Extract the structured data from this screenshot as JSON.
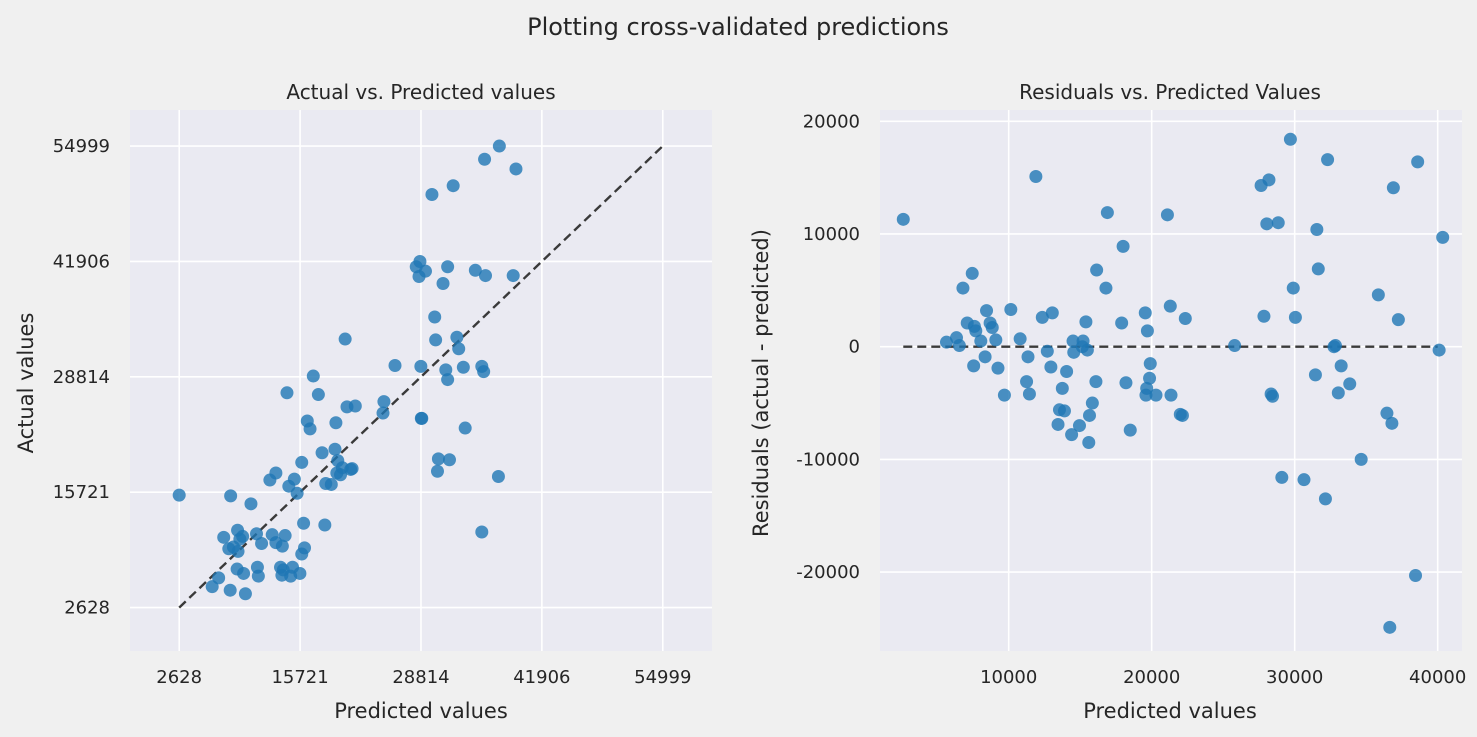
{
  "figure": {
    "suptitle": "Plotting cross-validated predictions",
    "background": "#f0f0f0",
    "axes_face": "#eaeaf2",
    "grid_color": "#ffffff",
    "point_color": "#1f77b4",
    "line_color": "#3a3a3a"
  },
  "chart_data": [
    {
      "type": "scatter",
      "title": "Actual vs. Predicted values",
      "xlabel": "Predicted values",
      "ylabel": "Actual values",
      "xlim": [
        -2700,
        60330
      ],
      "ylim": [
        -2300,
        59090
      ],
      "xticks": [
        2628,
        15721,
        28814,
        41906,
        54999
      ],
      "yticks": [
        2628,
        15721,
        28814,
        41906,
        54999
      ],
      "grid": true,
      "reference_line": {
        "style": "dashed",
        "x": [
          2628,
          54999
        ],
        "y": [
          2628,
          54999
        ]
      },
      "points": [
        [
          2628,
          15390
        ],
        [
          6200,
          5000
        ],
        [
          6900,
          6000
        ],
        [
          7450,
          10600
        ],
        [
          8000,
          9300
        ],
        [
          8150,
          4600
        ],
        [
          8200,
          15300
        ],
        [
          8500,
          9500
        ],
        [
          8900,
          7000
        ],
        [
          8950,
          11400
        ],
        [
          9000,
          9000
        ],
        [
          9200,
          10400
        ],
        [
          9500,
          10700
        ],
        [
          9600,
          6500
        ],
        [
          9800,
          4200
        ],
        [
          10400,
          14400
        ],
        [
          11000,
          11000
        ],
        [
          11100,
          7200
        ],
        [
          11200,
          6200
        ],
        [
          11550,
          9900
        ],
        [
          12450,
          17100
        ],
        [
          12700,
          10900
        ],
        [
          13100,
          17900
        ],
        [
          13100,
          10000
        ],
        [
          13600,
          7200
        ],
        [
          13750,
          6300
        ],
        [
          13800,
          9600
        ],
        [
          13900,
          6900
        ],
        [
          14100,
          10800
        ],
        [
          14500,
          16400
        ],
        [
          14700,
          6200
        ],
        [
          14900,
          7200
        ],
        [
          15100,
          17200
        ],
        [
          15400,
          15600
        ],
        [
          15700,
          6500
        ],
        [
          15900,
          8700
        ],
        [
          15900,
          19100
        ],
        [
          16100,
          12200
        ],
        [
          16200,
          9400
        ],
        [
          16500,
          23800
        ],
        [
          16800,
          22900
        ],
        [
          17150,
          28900
        ],
        [
          17700,
          26800
        ],
        [
          18100,
          20200
        ],
        [
          18400,
          12000
        ],
        [
          18500,
          16700
        ],
        [
          19100,
          16600
        ],
        [
          19500,
          20600
        ],
        [
          19600,
          23600
        ],
        [
          19700,
          17900
        ],
        [
          19800,
          19300
        ],
        [
          20100,
          17700
        ],
        [
          20300,
          18500
        ],
        [
          20600,
          33100
        ],
        [
          20800,
          25400
        ],
        [
          21200,
          18300
        ],
        [
          21350,
          18400
        ],
        [
          21700,
          25500
        ],
        [
          14300,
          27000
        ],
        [
          24800,
          26000
        ],
        [
          24700,
          24700
        ],
        [
          26000,
          30100
        ],
        [
          28300,
          41300
        ],
        [
          28600,
          40200
        ],
        [
          28800,
          30000
        ],
        [
          28700,
          41900
        ],
        [
          28850,
          24100
        ],
        [
          28900,
          24100
        ],
        [
          29300,
          40800
        ],
        [
          30000,
          49500
        ],
        [
          30300,
          35600
        ],
        [
          30400,
          33000
        ],
        [
          30600,
          18100
        ],
        [
          30700,
          19500
        ],
        [
          31200,
          39400
        ],
        [
          31500,
          29600
        ],
        [
          31700,
          28500
        ],
        [
          31700,
          41300
        ],
        [
          31900,
          19400
        ],
        [
          32300,
          50500
        ],
        [
          32700,
          33300
        ],
        [
          32900,
          32000
        ],
        [
          33400,
          29900
        ],
        [
          33600,
          23000
        ],
        [
          34700,
          40900
        ],
        [
          35400,
          30000
        ],
        [
          35400,
          11200
        ],
        [
          35600,
          29400
        ],
        [
          35700,
          53500
        ],
        [
          35800,
          40300
        ],
        [
          37200,
          17500
        ],
        [
          37300,
          54999
        ],
        [
          38800,
          40300
        ],
        [
          39100,
          52400
        ]
      ]
    },
    {
      "type": "scatter",
      "title": "Residuals vs. Predicted Values",
      "xlabel": "Predicted values",
      "ylabel": "Residuals (actual - predicted)",
      "xlim": [
        1000,
        41700
      ],
      "ylim": [
        -27000,
        21000
      ],
      "xticks": [
        10000,
        20000,
        30000,
        40000
      ],
      "yticks": [
        -20000,
        -10000,
        0,
        10000,
        20000
      ],
      "grid": true,
      "reference_line": {
        "style": "dashed",
        "x": [
          2628,
          40000
        ],
        "y": [
          0,
          0
        ]
      },
      "points": [
        [
          2628,
          11300
        ],
        [
          5650,
          400
        ],
        [
          6350,
          800
        ],
        [
          6550,
          100
        ],
        [
          6800,
          5200
        ],
        [
          7100,
          2100
        ],
        [
          7450,
          6500
        ],
        [
          7550,
          -1700
        ],
        [
          7600,
          1800
        ],
        [
          7700,
          1400
        ],
        [
          8050,
          500
        ],
        [
          8350,
          -900
        ],
        [
          8450,
          3200
        ],
        [
          8700,
          2100
        ],
        [
          8850,
          1700
        ],
        [
          9100,
          600
        ],
        [
          9250,
          -1900
        ],
        [
          9700,
          -4300
        ],
        [
          10150,
          3300
        ],
        [
          10800,
          700
        ],
        [
          11250,
          -3100
        ],
        [
          11350,
          -900
        ],
        [
          11450,
          -4200
        ],
        [
          11900,
          15100
        ],
        [
          12350,
          2600
        ],
        [
          12700,
          -400
        ],
        [
          12950,
          -1800
        ],
        [
          13050,
          3000
        ],
        [
          13450,
          -6900
        ],
        [
          13550,
          -5600
        ],
        [
          13750,
          -3700
        ],
        [
          13900,
          -5700
        ],
        [
          14050,
          -2200
        ],
        [
          14400,
          -7800
        ],
        [
          14500,
          500
        ],
        [
          14550,
          -500
        ],
        [
          14950,
          -7000
        ],
        [
          15150,
          0
        ],
        [
          15200,
          500
        ],
        [
          15400,
          2200
        ],
        [
          15500,
          -300
        ],
        [
          15600,
          -8500
        ],
        [
          15650,
          -6100
        ],
        [
          15850,
          -5000
        ],
        [
          16150,
          6800
        ],
        [
          16100,
          -3100
        ],
        [
          16800,
          5200
        ],
        [
          16900,
          11900
        ],
        [
          17900,
          2100
        ],
        [
          18000,
          8900
        ],
        [
          18200,
          -3200
        ],
        [
          18500,
          -7400
        ],
        [
          19550,
          3000
        ],
        [
          19600,
          -4300
        ],
        [
          19650,
          -3700
        ],
        [
          19700,
          1400
        ],
        [
          19850,
          -2800
        ],
        [
          19900,
          -1500
        ],
        [
          20300,
          -4300
        ],
        [
          21100,
          11700
        ],
        [
          21300,
          3600
        ],
        [
          21350,
          -4300
        ],
        [
          22000,
          -6000
        ],
        [
          22150,
          -6100
        ],
        [
          22350,
          2500
        ],
        [
          25800,
          100
        ],
        [
          27650,
          14300
        ],
        [
          27850,
          2700
        ],
        [
          28050,
          10900
        ],
        [
          28200,
          14800
        ],
        [
          28350,
          -4200
        ],
        [
          28450,
          -4400
        ],
        [
          28850,
          11000
        ],
        [
          29100,
          -11600
        ],
        [
          29700,
          18400
        ],
        [
          29900,
          5200
        ],
        [
          30050,
          2600
        ],
        [
          30650,
          -11800
        ],
        [
          31450,
          -2500
        ],
        [
          31550,
          10400
        ],
        [
          31650,
          6900
        ],
        [
          32150,
          -13500
        ],
        [
          32300,
          16600
        ],
        [
          32750,
          0
        ],
        [
          32850,
          100
        ],
        [
          33050,
          -4100
        ],
        [
          33250,
          -1700
        ],
        [
          33850,
          -3300
        ],
        [
          34650,
          -10000
        ],
        [
          35850,
          4600
        ],
        [
          36450,
          -5900
        ],
        [
          36650,
          -24900
        ],
        [
          36800,
          -6800
        ],
        [
          36900,
          14100
        ],
        [
          37250,
          2400
        ],
        [
          38450,
          -20300
        ],
        [
          38600,
          16400
        ],
        [
          40100,
          -300
        ],
        [
          40350,
          9700
        ]
      ]
    }
  ]
}
